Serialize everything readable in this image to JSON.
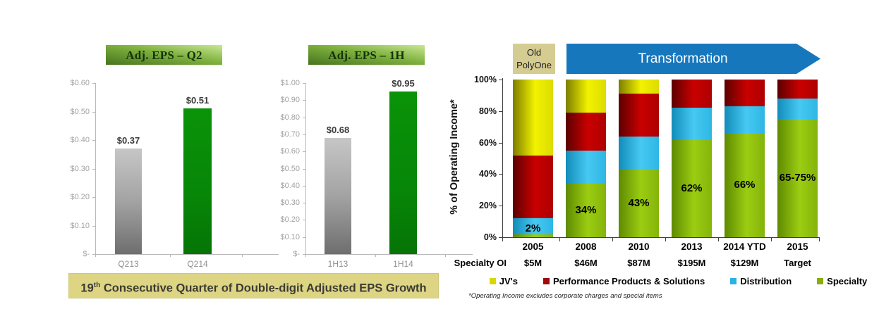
{
  "banner": {
    "prefix": "19",
    "sup": "th",
    "suffix": " Consecutive Quarter of Double-digit Adjusted EPS Growth"
  },
  "transformation": {
    "old_line1": "Old",
    "old_line2": "PolyOne",
    "arrow_label": "Transformation",
    "arrow_color": "#1777bd",
    "old_box_color": "#d5cc92"
  },
  "footnote": "*Operating Income excludes corporate charges and special items",
  "chart_data": [
    {
      "id": "eps_q2",
      "type": "bar",
      "title": "Adj. EPS – Q2",
      "categories": [
        "Q213",
        "Q214"
      ],
      "values": [
        0.37,
        0.51
      ],
      "value_labels": [
        "$0.37",
        "$0.51"
      ],
      "bar_colors": [
        "gray",
        "green"
      ],
      "y_ticks": [
        "$0.60",
        "$0.50",
        "$0.40",
        "$0.30",
        "$0.20",
        "$0.10",
        "$-"
      ],
      "ylim": [
        0,
        0.6
      ]
    },
    {
      "id": "eps_1h",
      "type": "bar",
      "title": "Adj. EPS – 1H",
      "categories": [
        "1H13",
        "1H14"
      ],
      "values": [
        0.68,
        0.95
      ],
      "value_labels": [
        "$0.68",
        "$0.95"
      ],
      "bar_colors": [
        "gray",
        "green"
      ],
      "y_ticks": [
        "$1.00",
        "$0.90",
        "$0.80",
        "$0.70",
        "$0.60",
        "$0.50",
        "$0.40",
        "$0.30",
        "$0.20",
        "$0.10",
        "$-"
      ],
      "ylim": [
        0,
        1.0
      ]
    },
    {
      "id": "operating_income_mix",
      "type": "stacked-bar",
      "ylabel": "% of Operating Income*",
      "categories": [
        "2005",
        "2008",
        "2010",
        "2013",
        "2014 YTD",
        "2015"
      ],
      "row_label": "Specialty OI",
      "sub_labels": [
        "$5M",
        "$46M",
        "$87M",
        "$195M",
        "$129M",
        "Target"
      ],
      "bar_labels": [
        "2%",
        "34%",
        "43%",
        "62%",
        "66%",
        "65-75%"
      ],
      "y_ticks": [
        "100%",
        "80%",
        "60%",
        "40%",
        "20%",
        "0%"
      ],
      "ylim": [
        0,
        100
      ],
      "legend_position": "bottom",
      "series": [
        {
          "key": "jvs",
          "name": "JV's",
          "color": "#d8d800",
          "values": [
            48,
            21,
            9,
            0,
            0,
            0
          ]
        },
        {
          "key": "pps",
          "name": "Performance Products & Solutions",
          "color": "#9c0b0e",
          "values": [
            40,
            24,
            27,
            18,
            17,
            12
          ]
        },
        {
          "key": "dist",
          "name": "Distribution",
          "color": "#29b2e2",
          "values": [
            10,
            21,
            21,
            20,
            17,
            13
          ]
        },
        {
          "key": "spec",
          "name": "Specialty",
          "color": "#8aad0a",
          "values": [
            2,
            34,
            43,
            62,
            66,
            75
          ]
        }
      ]
    }
  ]
}
